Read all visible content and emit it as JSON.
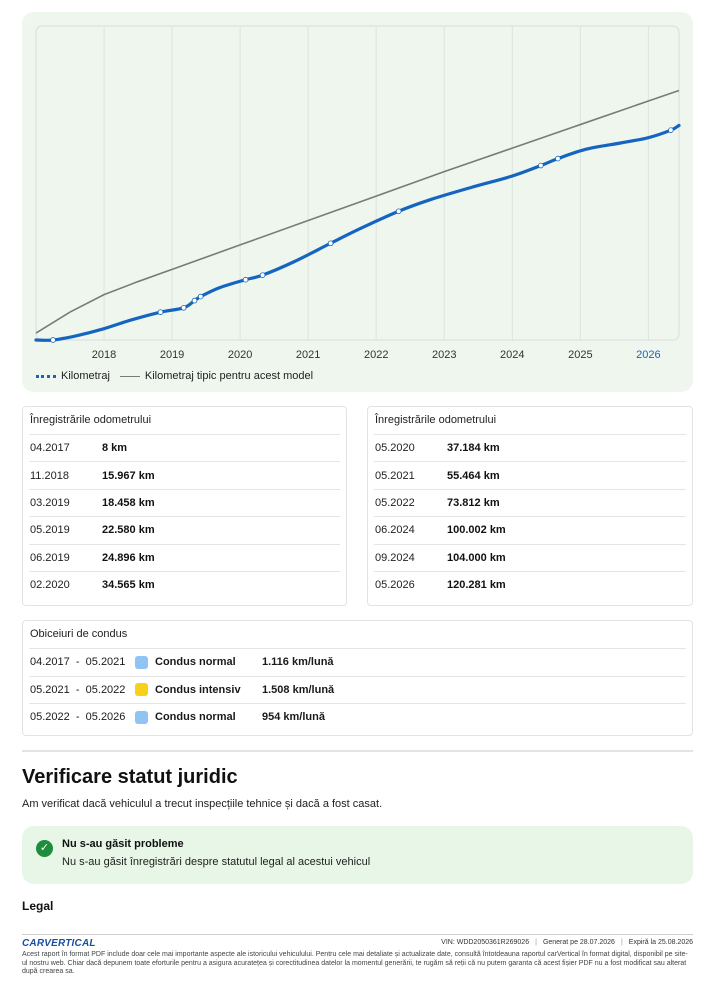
{
  "chart_data": {
    "type": "line",
    "x_ticks": [
      "2018",
      "2019",
      "2020",
      "2021",
      "2022",
      "2023",
      "2024",
      "2025",
      "2026"
    ],
    "highlight_tick": "2026",
    "xlim": [
      2017.0,
      2026.45
    ],
    "ylim": [
      0,
      180000
    ],
    "grid": true,
    "series": [
      {
        "name": "Kilometraj",
        "color": "#1565c0",
        "points": [
          [
            2017.25,
            8
          ],
          [
            2018.83,
            15967
          ],
          [
            2019.17,
            18458
          ],
          [
            2019.33,
            22580
          ],
          [
            2019.42,
            24896
          ],
          [
            2020.08,
            34565
          ],
          [
            2020.33,
            37184
          ],
          [
            2021.33,
            55464
          ],
          [
            2022.33,
            73812
          ],
          [
            2024.42,
            100002
          ],
          [
            2024.67,
            104000
          ],
          [
            2026.33,
            120281
          ]
        ],
        "extended_curve": [
          [
            2017.0,
            0
          ],
          [
            2017.25,
            8
          ],
          [
            2017.6,
            2500
          ],
          [
            2018.0,
            6500
          ],
          [
            2018.4,
            11500
          ],
          [
            2018.83,
            15967
          ],
          [
            2019.17,
            18458
          ],
          [
            2019.33,
            22580
          ],
          [
            2019.42,
            24896
          ],
          [
            2019.7,
            30000
          ],
          [
            2020.08,
            34565
          ],
          [
            2020.33,
            37184
          ],
          [
            2020.8,
            45000
          ],
          [
            2021.33,
            55464
          ],
          [
            2021.8,
            64500
          ],
          [
            2022.33,
            73812
          ],
          [
            2022.8,
            80500
          ],
          [
            2023.4,
            87500
          ],
          [
            2024.0,
            94000
          ],
          [
            2024.42,
            100002
          ],
          [
            2024.67,
            104000
          ],
          [
            2025.1,
            109500
          ],
          [
            2025.6,
            113000
          ],
          [
            2026.0,
            116000
          ],
          [
            2026.33,
            120281
          ],
          [
            2026.45,
            123000
          ]
        ]
      },
      {
        "name": "Kilometraj tipic pentru acest model",
        "color": "#7a7a7a",
        "points": [
          [
            2017.0,
            4000
          ],
          [
            2017.5,
            16000
          ],
          [
            2018.0,
            26000
          ],
          [
            2018.5,
            33500
          ],
          [
            2019.0,
            40500
          ],
          [
            2020.0,
            54500
          ],
          [
            2021.0,
            68500
          ],
          [
            2022.0,
            82500
          ],
          [
            2023.0,
            96500
          ],
          [
            2024.0,
            110000
          ],
          [
            2025.0,
            123500
          ],
          [
            2026.0,
            137000
          ],
          [
            2026.45,
            143000
          ]
        ]
      }
    ]
  },
  "odometer_left": {
    "header": "Înregistrările odometrului",
    "rows": [
      {
        "date": "04.2017",
        "value": "8 km"
      },
      {
        "date": "11.2018",
        "value": "15.967 km"
      },
      {
        "date": "03.2019",
        "value": "18.458 km"
      },
      {
        "date": "05.2019",
        "value": "22.580 km"
      },
      {
        "date": "06.2019",
        "value": "24.896 km"
      },
      {
        "date": "02.2020",
        "value": "34.565 km"
      }
    ]
  },
  "odometer_right": {
    "header": "Înregistrările odometrului",
    "rows": [
      {
        "date": "05.2020",
        "value": "37.184 km"
      },
      {
        "date": "05.2021",
        "value": "55.464 km"
      },
      {
        "date": "05.2022",
        "value": "73.812 km"
      },
      {
        "date": "06.2024",
        "value": "100.002 km"
      },
      {
        "date": "09.2024",
        "value": "104.000 km"
      },
      {
        "date": "05.2026",
        "value": "120.281 km"
      }
    ]
  },
  "driving_habits": {
    "header": "Obiceiuri de condus",
    "rows": [
      {
        "period": "04.2017  -  05.2021",
        "type": "Condus normal",
        "rate": "1.116 km/lună",
        "color": "#90c4f5"
      },
      {
        "period": "05.2021  -  05.2022",
        "type": "Condus intensiv",
        "rate": "1.508 km/lună",
        "color": "#f7d117"
      },
      {
        "period": "05.2022  -  05.2026",
        "type": "Condus normal",
        "rate": "954 km/lună",
        "color": "#90c4f5"
      }
    ]
  },
  "legal_status": {
    "title": "Verificare statut juridic",
    "subtitle": "Am verificat dacă vehiculul a trecut inspecțiile tehnice și dacă a fost casat.",
    "ok_title": "Nu s-au găsit probleme",
    "ok_text": "Nu s-au găsit înregistrări despre statutul legal al acestui vehicul",
    "ok_icon": "check-icon"
  },
  "legal_heading": "Legal",
  "footer": {
    "logo": "CARVERTICAL",
    "vin": "VIN:  WDD2050361R269026",
    "generated": "Generat pe  28.07.2026",
    "expires": "Expiră la  25.08.2026",
    "fine_print": "Acest raport în format PDF include doar cele mai importante aspecte ale istoricului vehiculului. Pentru cele mai detaliate și actualizate date, consultă întotdeauna raportul carVertical în format digital, disponibil pe site-ul nostru web. Chiar dacă depunem toate eforturile pentru a asigura acuratețea și corectitudinea datelor la momentul generării, te rugăm să reții că nu putem garanta că acest fișier PDF nu a fost modificat sau alterat după crearea sa."
  }
}
